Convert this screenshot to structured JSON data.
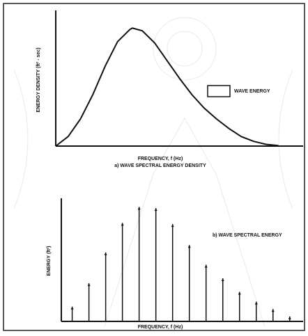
{
  "chart_data": [
    {
      "type": "line",
      "y_label": "ENERGY DENSITY (ft² - sec)",
      "x_label": "FREQUENCY, f (Hz)",
      "caption": "a) WAVE SPECTRAL ENERGY DENSITY",
      "x": [
        0,
        0.05,
        0.1,
        0.15,
        0.2,
        0.25,
        0.3,
        0.31,
        0.35,
        0.4,
        0.45,
        0.5,
        0.55,
        0.6,
        0.65,
        0.7,
        0.75,
        0.8,
        0.85,
        0.9
      ],
      "series": [
        {
          "name": "WAVE ENERGY",
          "color": "#111111",
          "values": [
            0,
            0.07,
            0.2,
            0.38,
            0.59,
            0.77,
            0.86,
            0.87,
            0.85,
            0.76,
            0.63,
            0.5,
            0.38,
            0.28,
            0.2,
            0.13,
            0.07,
            0.035,
            0.013,
            0.004
          ]
        }
      ],
      "xlim": [
        0,
        1
      ],
      "ylim": [
        0,
        1
      ]
    },
    {
      "type": "stem",
      "y_label": "ENERGY (ft²)",
      "x_label": "FREQUENCY, f (Hz)",
      "caption": "b) WAVE SPECTRAL ENERGY",
      "x": [
        1,
        2,
        3,
        4,
        5,
        6,
        7,
        8,
        9,
        10,
        11,
        12,
        13,
        14
      ],
      "values": [
        0.12,
        0.31,
        0.56,
        0.8,
        0.93,
        0.92,
        0.79,
        0.62,
        0.46,
        0.35,
        0.24,
        0.16,
        0.1,
        0.04
      ],
      "color": "#111111",
      "xlim": [
        0.35,
        14.8
      ],
      "ylim": [
        0,
        1
      ]
    }
  ]
}
